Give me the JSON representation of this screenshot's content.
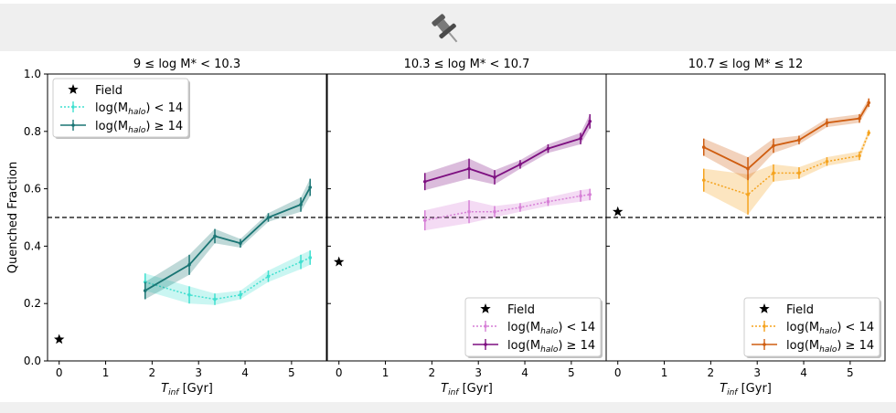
{
  "toolbar": {
    "pin_icon": "pushpin-icon",
    "pin_color": "#555555"
  },
  "shared": {
    "ylabel": "Quenched Fraction",
    "xlabel": "T",
    "xlabel_sub": "inf",
    "xlabel_unit": " [Gyr]",
    "ylim": [
      0.0,
      1.0
    ],
    "xlim": [
      -0.25,
      5.75
    ],
    "yticks": [
      "0.0",
      "0.2",
      "0.4",
      "0.6",
      "0.8",
      "1.0"
    ],
    "xticks": [
      "0",
      "1",
      "2",
      "3",
      "4",
      "5"
    ],
    "reference_line": 0.5
  },
  "chart_data": [
    {
      "type": "line",
      "title": "9 ≤ log M* < 10.3",
      "legend_position": "upper-left",
      "legend": {
        "field": "Field",
        "low": "log(Mhalo) < 14",
        "high": "log(Mhalo) ≥ 14"
      },
      "field_point": {
        "x": 0.0,
        "y": 0.075
      },
      "series": [
        {
          "name": "log(Mhalo) < 14",
          "style": "dotted",
          "color": "#40e0d0",
          "x": [
            1.85,
            2.8,
            3.35,
            3.9,
            4.5,
            5.2,
            5.4
          ],
          "y": [
            0.275,
            0.23,
            0.215,
            0.23,
            0.295,
            0.345,
            0.36
          ],
          "err": [
            0.03,
            0.03,
            0.02,
            0.015,
            0.02,
            0.025,
            0.025
          ]
        },
        {
          "name": "log(Mhalo) ≥ 14",
          "style": "solid",
          "color": "#1a7574",
          "x": [
            1.85,
            2.8,
            3.35,
            3.9,
            4.5,
            5.2,
            5.4
          ],
          "y": [
            0.245,
            0.335,
            0.435,
            0.41,
            0.5,
            0.545,
            0.605
          ],
          "err": [
            0.03,
            0.035,
            0.025,
            0.015,
            0.015,
            0.025,
            0.03
          ]
        }
      ]
    },
    {
      "type": "line",
      "title": "10.3 ≤ log M* < 10.7",
      "legend_position": "lower-right",
      "legend": {
        "field": "Field",
        "low": "log(Mhalo) < 14",
        "high": "log(Mhalo) ≥ 14"
      },
      "field_point": {
        "x": 0.0,
        "y": 0.345
      },
      "series": [
        {
          "name": "log(Mhalo) < 14",
          "style": "dotted",
          "color": "#d67fd6",
          "x": [
            1.85,
            2.8,
            3.35,
            3.9,
            4.5,
            5.2,
            5.4
          ],
          "y": [
            0.49,
            0.52,
            0.52,
            0.535,
            0.555,
            0.575,
            0.58
          ],
          "err": [
            0.035,
            0.04,
            0.02,
            0.015,
            0.015,
            0.02,
            0.02
          ]
        },
        {
          "name": "log(Mhalo) ≥ 14",
          "style": "solid",
          "color": "#7d0f80",
          "x": [
            1.85,
            2.8,
            3.35,
            3.9,
            4.5,
            5.2,
            5.4
          ],
          "y": [
            0.625,
            0.67,
            0.64,
            0.685,
            0.74,
            0.775,
            0.835
          ],
          "err": [
            0.03,
            0.035,
            0.025,
            0.015,
            0.015,
            0.02,
            0.025
          ]
        }
      ]
    },
    {
      "type": "line",
      "title": "10.7 ≤ log M* ≤ 12",
      "legend_position": "lower-right",
      "legend": {
        "field": "Field",
        "low": "log(Mhalo) < 14",
        "high": "log(Mhalo) ≥ 14"
      },
      "field_point": {
        "x": 0.0,
        "y": 0.52
      },
      "series": [
        {
          "name": "log(Mhalo) < 14",
          "style": "dotted",
          "color": "#f5a31e",
          "x": [
            1.85,
            2.8,
            3.35,
            3.9,
            4.5,
            5.2,
            5.4
          ],
          "y": [
            0.63,
            0.58,
            0.655,
            0.655,
            0.695,
            0.715,
            0.795
          ],
          "err": [
            0.04,
            0.07,
            0.03,
            0.02,
            0.015,
            0.015,
            0.01
          ]
        },
        {
          "name": "log(Mhalo) ≥ 14",
          "style": "solid",
          "color": "#cf5d10",
          "x": [
            1.85,
            2.8,
            3.35,
            3.9,
            4.5,
            5.2,
            5.4
          ],
          "y": [
            0.745,
            0.67,
            0.75,
            0.77,
            0.83,
            0.845,
            0.9
          ],
          "err": [
            0.03,
            0.04,
            0.025,
            0.015,
            0.015,
            0.015,
            0.015
          ]
        }
      ]
    }
  ]
}
